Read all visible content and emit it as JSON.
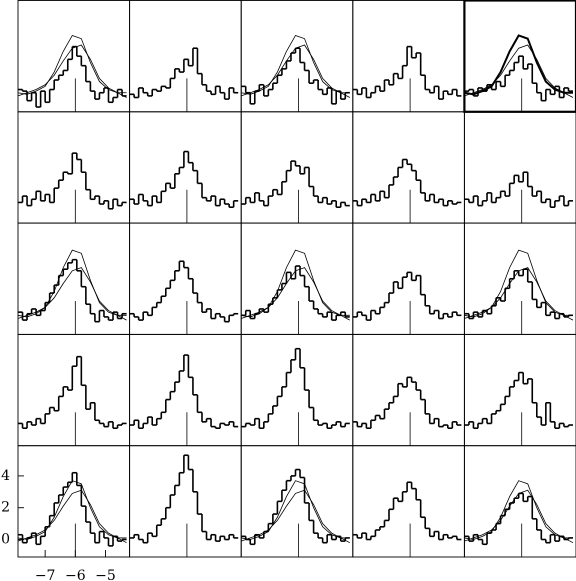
{
  "chart_data": {
    "type": "step",
    "bins": [
      -7.9,
      -7.75,
      -7.6,
      -7.45,
      -7.3,
      -7.15,
      -7.0,
      -6.85,
      -6.7,
      -6.55,
      -6.4,
      -6.25,
      -6.1,
      -5.95,
      -5.8,
      -5.65,
      -5.5,
      -5.35,
      -5.2,
      -5.05,
      -4.9,
      -4.75,
      -4.6,
      -4.45,
      -4.3
    ],
    "model_x": [
      -7.9,
      -7.6,
      -7.3,
      -7.0,
      -6.7,
      -6.4,
      -6.1,
      -5.8,
      -5.5,
      -5.2,
      -4.9,
      -4.6,
      -4.3
    ],
    "xlim": [
      -7.9,
      -4.2
    ],
    "ylim": [
      -1.1,
      5.9
    ],
    "xticks": [
      {
        "value": -7,
        "label": "−7"
      },
      {
        "value": -6,
        "label": "−6"
      },
      {
        "value": -5,
        "label": "−5"
      }
    ],
    "yticks": [
      0,
      2,
      4
    ],
    "ref_x": -6,
    "ref_top": 1.0,
    "color": "#000000",
    "columns": 5,
    "panels": [
      {
        "values": [
          0.3,
          0.2,
          -0.4,
          0.1,
          -0.8,
          0.2,
          -0.5,
          0.3,
          0.9,
          1.2,
          1.5,
          2.2,
          3.0,
          2.4,
          1.8,
          0.8,
          0.2,
          -0.3,
          0.1,
          0.4,
          -0.5,
          -0.2,
          0.3,
          -0.1
        ],
        "models": [
          {
            "values": [
              0.1,
              0.0,
              0.2,
              0.5,
              1.4,
              2.7,
              3.7,
              3.5,
              2.0,
              0.8,
              0.3,
              0.1,
              0.1
            ]
          },
          {
            "values": [
              -0.1,
              0.1,
              0.3,
              0.6,
              1.2,
              2.1,
              2.9,
              3.1,
              2.2,
              1.0,
              0.4,
              0.1,
              -0.2
            ]
          }
        ]
      },
      {
        "values": [
          0.0,
          -0.2,
          0.4,
          0.1,
          -0.1,
          0.3,
          0.2,
          0.5,
          0.4,
          1.0,
          1.6,
          1.4,
          2.2,
          1.8,
          2.9,
          1.3,
          0.6,
          0.2,
          0.0,
          0.5,
          0.1,
          -0.3,
          0.4,
          0.1
        ]
      },
      {
        "values": [
          0.5,
          0.1,
          -0.6,
          0.2,
          0.6,
          -0.1,
          0.3,
          0.7,
          1.2,
          1.6,
          2.1,
          2.6,
          2.9,
          2.0,
          1.5,
          0.7,
          0.9,
          0.3,
          0.0,
          0.4,
          -0.6,
          0.2,
          -0.3,
          0.1
        ],
        "models": [
          {
            "values": [
              0.1,
              0.0,
              0.2,
              0.5,
              1.4,
              2.7,
              3.7,
              3.5,
              2.0,
              0.8,
              0.3,
              0.1,
              0.1
            ]
          },
          {
            "values": [
              -0.1,
              0.1,
              0.3,
              0.6,
              1.2,
              2.1,
              2.9,
              3.1,
              2.2,
              1.0,
              0.4,
              0.1,
              -0.2
            ]
          }
        ]
      },
      {
        "values": [
          0.3,
          0.0,
          0.4,
          -0.2,
          0.1,
          0.5,
          0.2,
          0.9,
          0.6,
          1.3,
          1.0,
          1.8,
          3.0,
          2.3,
          2.6,
          1.2,
          0.3,
          0.1,
          0.5,
          -0.3,
          0.2,
          0.0,
          0.3,
          -0.1
        ]
      },
      {
        "values": [
          0.2,
          0.3,
          -0.1,
          0.4,
          0.2,
          0.6,
          0.3,
          0.8,
          0.5,
          1.2,
          1.5,
          2.0,
          2.4,
          1.6,
          1.9,
          0.7,
          0.1,
          -0.4,
          0.3,
          0.0,
          0.5,
          -0.2,
          0.4,
          0.2
        ],
        "models": [
          {
            "values": [
              0.1,
              0.0,
              0.2,
              0.5,
              1.4,
              2.7,
              3.7,
              3.5,
              2.0,
              0.8,
              0.3,
              0.1,
              0.1
            ]
          },
          {
            "values": [
              -0.1,
              0.1,
              0.3,
              0.6,
              1.2,
              2.1,
              2.9,
              3.1,
              2.2,
              1.0,
              0.4,
              0.1,
              -0.2
            ]
          }
        ],
        "highlighted": true
      },
      {
        "values": [
          0.2,
          0.6,
          0.0,
          0.4,
          0.9,
          0.3,
          0.7,
          0.2,
          1.1,
          1.6,
          2.1,
          2.0,
          3.3,
          2.9,
          2.1,
          1.0,
          0.4,
          0.6,
          0.1,
          0.3,
          -0.2,
          0.4,
          0.0,
          0.2
        ]
      },
      {
        "values": [
          0.4,
          0.1,
          0.7,
          0.3,
          0.0,
          0.6,
          0.2,
          0.9,
          1.4,
          1.1,
          2.0,
          2.4,
          3.4,
          2.7,
          2.2,
          1.4,
          0.5,
          0.3,
          0.6,
          0.0,
          0.4,
          0.1,
          -0.1,
          0.3
        ]
      },
      {
        "values": [
          0.1,
          0.5,
          0.2,
          0.8,
          0.3,
          0.0,
          0.6,
          1.0,
          0.7,
          1.5,
          2.2,
          2.8,
          2.5,
          2.0,
          2.4,
          1.2,
          0.6,
          0.2,
          0.5,
          0.1,
          0.3,
          -0.1,
          0.2,
          0.0
        ]
      },
      {
        "values": [
          0.3,
          0.0,
          0.4,
          0.2,
          0.7,
          0.3,
          0.9,
          0.5,
          1.3,
          1.8,
          2.4,
          2.9,
          2.6,
          2.2,
          1.6,
          0.8,
          0.3,
          0.7,
          0.2,
          0.4,
          0.0,
          0.3,
          0.1,
          0.2
        ]
      },
      {
        "values": [
          0.4,
          0.2,
          0.6,
          0.0,
          0.3,
          0.8,
          0.2,
          0.5,
          0.9,
          0.6,
          1.4,
          1.9,
          1.5,
          2.1,
          1.2,
          0.6,
          0.9,
          0.2,
          0.4,
          -0.1,
          0.3,
          0.6,
          0.0,
          0.3
        ]
      },
      {
        "values": [
          0.3,
          -0.2,
          0.2,
          0.5,
          0.1,
          0.4,
          0.9,
          1.5,
          2.0,
          2.6,
          3.0,
          3.4,
          3.6,
          2.9,
          1.9,
          0.8,
          0.2,
          -0.3,
          0.4,
          0.0,
          -0.2,
          0.3,
          -0.1,
          0.2
        ],
        "models": [
          {
            "values": [
              0.1,
              0.0,
              0.2,
              0.6,
              1.6,
              3.1,
              4.2,
              4.0,
              2.3,
              0.9,
              0.3,
              0.1,
              0.1
            ]
          },
          {
            "values": [
              -0.1,
              0.1,
              0.3,
              0.6,
              1.2,
              2.1,
              2.9,
              3.1,
              2.2,
              1.0,
              0.4,
              0.1,
              -0.2
            ]
          }
        ]
      },
      {
        "values": [
          0.2,
          0.0,
          -0.2,
          0.3,
          0.1,
          0.6,
          0.9,
          1.3,
          1.8,
          2.3,
          2.9,
          3.5,
          3.1,
          2.4,
          1.5,
          0.9,
          0.3,
          0.5,
          -0.1,
          0.2,
          0.0,
          -0.3,
          0.1,
          0.2
        ]
      },
      {
        "values": [
          0.1,
          0.4,
          -0.1,
          0.2,
          0.5,
          0.3,
          0.8,
          1.2,
          1.7,
          2.1,
          2.8,
          2.4,
          3.2,
          2.6,
          1.9,
          1.0,
          0.5,
          0.2,
          0.0,
          0.3,
          -0.2,
          0.1,
          0.3,
          0.0
        ],
        "models": [
          {
            "values": [
              0.1,
              0.0,
              0.2,
              0.6,
              1.6,
              3.1,
              4.2,
              4.0,
              2.3,
              0.9,
              0.3,
              0.1,
              0.1
            ]
          },
          {
            "values": [
              -0.1,
              0.1,
              0.3,
              0.6,
              1.2,
              2.1,
              2.9,
              3.1,
              2.2,
              1.0,
              0.4,
              0.1,
              -0.2
            ]
          }
        ]
      },
      {
        "values": [
          0.0,
          0.3,
          0.1,
          -0.2,
          0.4,
          0.2,
          0.6,
          0.9,
          1.5,
          2.2,
          1.8,
          2.5,
          2.8,
          2.3,
          2.6,
          1.4,
          0.7,
          0.2,
          0.4,
          -0.1,
          0.2,
          0.0,
          0.3,
          0.1
        ]
      },
      {
        "values": [
          0.2,
          -0.1,
          0.3,
          0.0,
          0.4,
          0.2,
          0.7,
          1.2,
          1.0,
          1.8,
          2.4,
          2.9,
          2.6,
          3.0,
          2.2,
          1.1,
          0.6,
          0.9,
          0.1,
          0.3,
          -0.1,
          0.2,
          0.0,
          0.1
        ],
        "models": [
          {
            "values": [
              0.1,
              0.0,
              0.2,
              0.6,
              1.6,
              3.1,
              4.2,
              4.0,
              2.3,
              0.9,
              0.3,
              0.1,
              0.1
            ]
          },
          {
            "values": [
              -0.1,
              0.1,
              0.3,
              0.6,
              1.2,
              2.1,
              2.9,
              3.1,
              2.2,
              1.0,
              0.4,
              0.1,
              -0.2
            ]
          }
        ]
      },
      {
        "values": [
          0.3,
          0.0,
          0.4,
          0.2,
          0.6,
          0.3,
          0.9,
          1.3,
          1.1,
          2.0,
          2.6,
          2.4,
          3.9,
          4.5,
          2.7,
          1.2,
          1.6,
          0.5,
          0.3,
          0.1,
          0.4,
          0.0,
          0.2,
          0.3
        ]
      },
      {
        "values": [
          0.2,
          0.5,
          0.0,
          0.3,
          0.7,
          0.2,
          0.6,
          1.0,
          1.8,
          2.3,
          2.9,
          3.6,
          4.6,
          3.2,
          2.1,
          1.0,
          0.4,
          0.6,
          0.1,
          0.0,
          0.3,
          0.2,
          0.4,
          0.1
        ]
      },
      {
        "values": [
          0.1,
          0.3,
          0.2,
          0.6,
          0.0,
          0.4,
          0.9,
          1.4,
          2.0,
          2.6,
          3.5,
          4.3,
          5.0,
          3.8,
          2.4,
          1.3,
          0.5,
          0.2,
          0.3,
          0.0,
          0.2,
          0.4,
          0.1,
          0.3
        ]
      },
      {
        "values": [
          0.4,
          0.1,
          0.3,
          0.0,
          0.5,
          0.8,
          0.6,
          1.2,
          1.6,
          2.0,
          2.8,
          2.6,
          3.2,
          2.9,
          2.4,
          1.8,
          0.9,
          0.3,
          0.6,
          0.1,
          0.2,
          0.0,
          0.4,
          0.2
        ]
      },
      {
        "values": [
          0.2,
          0.4,
          0.0,
          0.3,
          0.6,
          0.3,
          0.9,
          1.1,
          1.5,
          2.0,
          2.6,
          3.0,
          3.5,
          2.8,
          3.1,
          1.6,
          0.7,
          0.2,
          1.6,
          0.4,
          0.0,
          0.3,
          0.1,
          0.2
        ]
      },
      {
        "values": [
          0.3,
          -0.2,
          0.1,
          0.4,
          -0.3,
          0.2,
          0.8,
          1.5,
          2.3,
          2.8,
          3.3,
          3.6,
          4.2,
          3.4,
          2.1,
          1.1,
          0.4,
          -0.2,
          0.5,
          0.1,
          -0.4,
          0.2,
          -0.1,
          0.0
        ],
        "models": [
          {
            "values": [
              0.1,
              0.0,
              0.2,
              0.5,
              1.4,
              2.7,
              3.7,
              3.5,
              2.0,
              0.8,
              0.3,
              0.1,
              0.1
            ]
          },
          {
            "values": [
              -0.1,
              0.1,
              0.3,
              0.6,
              1.2,
              2.1,
              2.9,
              3.1,
              2.2,
              1.0,
              0.4,
              0.1,
              -0.2
            ]
          }
        ]
      },
      {
        "values": [
          0.1,
          0.3,
          0.0,
          -0.2,
          0.4,
          0.2,
          0.9,
          1.3,
          2.0,
          2.8,
          3.4,
          4.2,
          5.3,
          4.4,
          3.0,
          1.6,
          0.5,
          0.0,
          0.3,
          -0.1,
          0.2,
          0.0,
          0.3,
          0.1
        ]
      },
      {
        "values": [
          0.2,
          0.0,
          -0.3,
          0.3,
          0.1,
          0.5,
          1.0,
          1.6,
          2.4,
          3.1,
          3.7,
          4.0,
          4.4,
          3.9,
          2.3,
          1.2,
          0.4,
          0.1,
          -0.2,
          0.3,
          0.0,
          0.2,
          -0.1,
          0.1
        ],
        "models": [
          {
            "values": [
              0.1,
              0.0,
              0.2,
              0.5,
              1.4,
              2.7,
              3.7,
              3.5,
              2.0,
              0.8,
              0.3,
              0.1,
              0.1
            ]
          },
          {
            "values": [
              -0.1,
              0.1,
              0.3,
              0.6,
              1.2,
              2.1,
              2.9,
              3.1,
              2.2,
              1.0,
              0.4,
              0.1,
              -0.2
            ]
          }
        ]
      },
      {
        "values": [
          0.3,
          0.1,
          0.4,
          0.0,
          0.2,
          0.6,
          0.8,
          1.2,
          1.9,
          2.6,
          2.4,
          3.0,
          3.6,
          3.2,
          2.5,
          1.4,
          0.7,
          0.2,
          0.5,
          0.0,
          0.3,
          0.1,
          0.2,
          0.0
        ]
      },
      {
        "values": [
          0.2,
          -0.1,
          0.3,
          0.0,
          -0.3,
          0.4,
          0.6,
          1.0,
          1.5,
          1.9,
          2.3,
          2.6,
          2.9,
          2.4,
          2.7,
          1.3,
          0.6,
          0.0,
          -0.2,
          0.3,
          -0.1,
          0.2,
          0.0,
          0.1
        ],
        "models": [
          {
            "values": [
              0.1,
              0.0,
              0.2,
              0.5,
              1.4,
              2.7,
              3.7,
              3.5,
              2.0,
              0.8,
              0.3,
              0.1,
              0.1
            ]
          },
          {
            "values": [
              -0.1,
              0.1,
              0.3,
              0.6,
              1.2,
              2.1,
              2.9,
              3.1,
              2.2,
              1.0,
              0.4,
              0.1,
              -0.2
            ]
          }
        ]
      }
    ]
  }
}
